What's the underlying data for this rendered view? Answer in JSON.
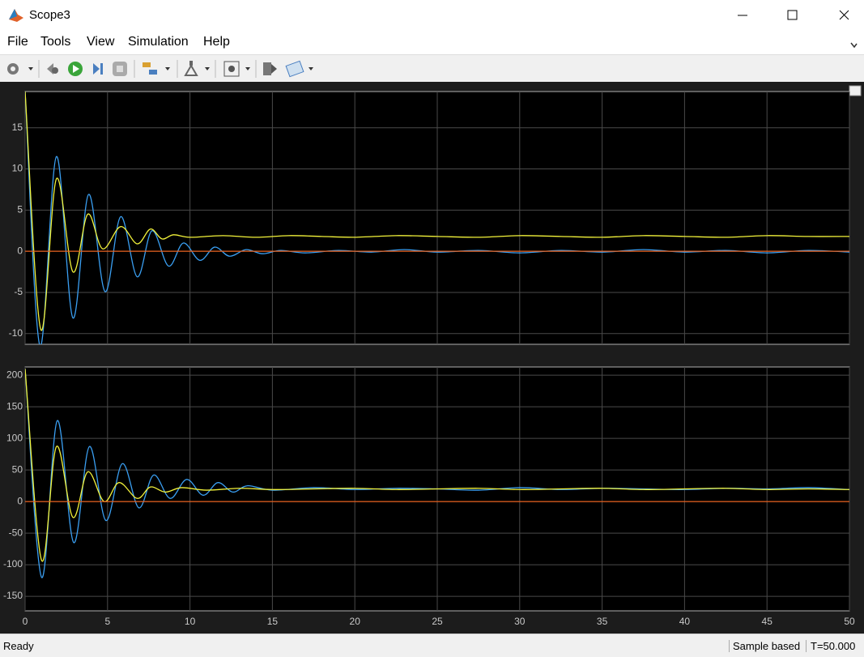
{
  "window": {
    "title": "Scope3"
  },
  "menu": [
    "File",
    "Tools",
    "View",
    "Simulation",
    "Help"
  ],
  "status": {
    "state": "Ready",
    "mode": "Sample based",
    "time": "T=50.000"
  },
  "chart_data": [
    {
      "type": "line",
      "xlim": [
        0,
        50
      ],
      "xticks": [
        0,
        5,
        10,
        15,
        20,
        25,
        30,
        35,
        40,
        45,
        50
      ],
      "show_xtick_labels": false,
      "ylim": [
        -11.3,
        19.4
      ],
      "yticks": [
        -10,
        -5,
        0,
        5,
        10,
        15
      ],
      "grid": true,
      "series": [
        {
          "color": "#3a9ff2",
          "x": [
            0,
            0.9,
            1.9,
            2.9,
            3.85,
            4.85,
            5.8,
            6.8,
            7.7,
            8.7,
            9.6,
            10.6,
            11.5,
            12.4,
            13.4,
            14.4,
            15.5,
            17,
            19,
            21,
            23,
            25,
            27.5,
            30,
            32.5,
            35,
            37.5,
            40,
            42.5,
            45,
            47.5,
            50
          ],
          "values": [
            19.4,
            -11.5,
            11.5,
            -8.1,
            6.9,
            -4.9,
            4.2,
            -3.1,
            2.5,
            -1.8,
            1.0,
            -1.1,
            0.5,
            -0.6,
            0.2,
            -0.3,
            0.1,
            -0.2,
            0.1,
            -0.1,
            0.2,
            -0.1,
            0.1,
            -0.2,
            0.1,
            -0.1,
            0.2,
            -0.1,
            0.1,
            -0.2,
            0.1,
            -0.1
          ]
        },
        {
          "color": "#f2f23a",
          "x": [
            0,
            0.95,
            1.9,
            2.9,
            3.8,
            4.7,
            5.8,
            6.8,
            7.6,
            8.3,
            9,
            10,
            12,
            14,
            16,
            18,
            20,
            22.5,
            25,
            27.5,
            30,
            32.5,
            35,
            37.5,
            40,
            42.5,
            45,
            47.5,
            50
          ],
          "values": [
            19.4,
            -9.5,
            8.8,
            -2.5,
            4.5,
            0.3,
            3.0,
            0.9,
            2.7,
            1.5,
            2.0,
            1.7,
            1.9,
            1.7,
            1.9,
            1.8,
            1.7,
            1.9,
            1.8,
            1.7,
            1.9,
            1.8,
            1.7,
            1.9,
            1.8,
            1.7,
            1.9,
            1.8,
            1.8
          ]
        },
        {
          "color": "#e8601c",
          "x": [
            0,
            50
          ],
          "values": [
            0,
            0
          ]
        }
      ]
    },
    {
      "type": "line",
      "xlim": [
        0,
        50
      ],
      "xticks": [
        0,
        5,
        10,
        15,
        20,
        25,
        30,
        35,
        40,
        45,
        50
      ],
      "show_xtick_labels": true,
      "ylim": [
        -173,
        213
      ],
      "yticks": [
        -150,
        -100,
        -50,
        0,
        50,
        100,
        150,
        200
      ],
      "grid": true,
      "series": [
        {
          "color": "#3a9ff2",
          "x": [
            0,
            1.0,
            1.95,
            2.95,
            3.9,
            4.9,
            5.9,
            6.9,
            7.8,
            8.8,
            9.8,
            10.8,
            11.7,
            12.6,
            13.5,
            15,
            17.5,
            20,
            22.5,
            25,
            27.5,
            30,
            32.5,
            35,
            37.5,
            40,
            42.5,
            45,
            47.5,
            50
          ],
          "values": [
            210,
            -120,
            128,
            -65,
            87,
            -30,
            60,
            -10,
            42,
            5,
            35,
            10,
            30,
            15,
            25,
            18,
            22,
            19,
            21,
            20,
            18,
            22,
            19,
            21,
            20,
            19,
            21,
            20,
            22,
            19
          ]
        },
        {
          "color": "#f2f23a",
          "x": [
            0,
            1.0,
            1.9,
            2.9,
            3.8,
            4.8,
            5.7,
            6.8,
            7.6,
            8.5,
            9.5,
            11,
            13,
            15,
            17.5,
            20,
            22.5,
            25,
            27.5,
            30,
            32.5,
            35,
            37.5,
            40,
            42.5,
            45,
            47.5,
            50
          ],
          "values": [
            210,
            -93,
            87,
            -25,
            47,
            0,
            30,
            5,
            23,
            15,
            22,
            18,
            21,
            19,
            20,
            21,
            19,
            20,
            21,
            19,
            20,
            21,
            19,
            20,
            21,
            19,
            20,
            19
          ]
        },
        {
          "color": "#e8601c",
          "x": [
            0,
            50
          ],
          "values": [
            0,
            0
          ]
        }
      ]
    }
  ]
}
